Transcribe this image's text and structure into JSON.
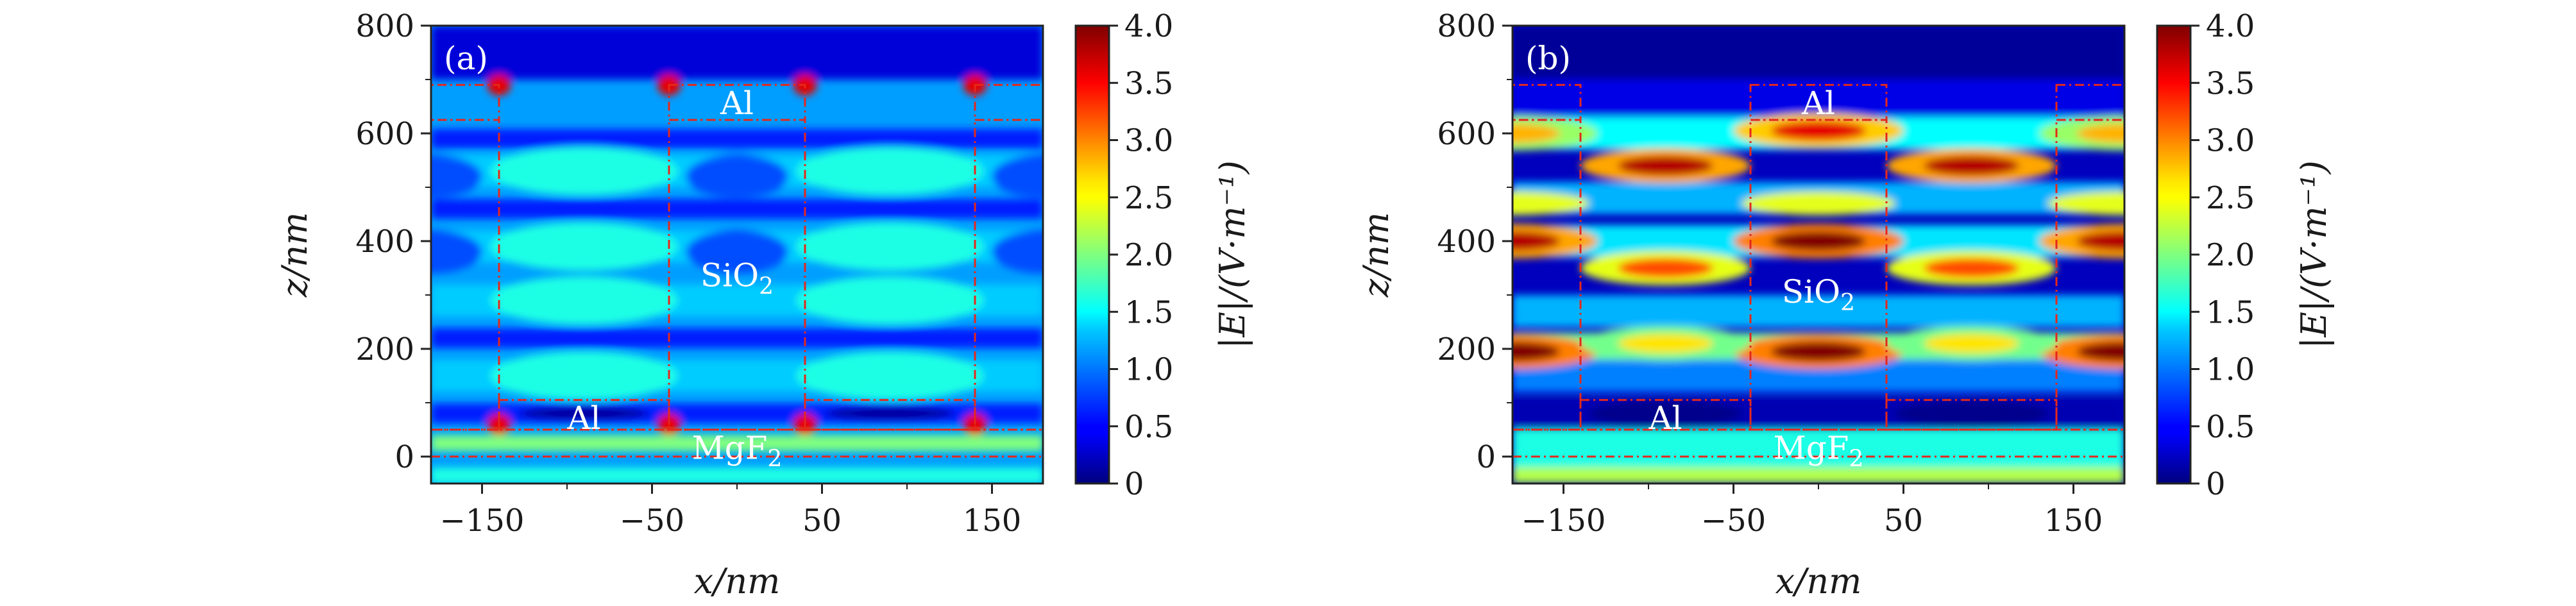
{
  "chart_data": [
    {
      "type": "heatmap",
      "panel_label": "(a)",
      "xlabel": "x/nm",
      "ylabel": "z/nm",
      "xlim": [
        -180,
        180
      ],
      "ylim": [
        -50,
        800
      ],
      "x_ticks": [
        -150,
        -50,
        50,
        150
      ],
      "x_tick_labels": [
        "−150",
        "−50",
        "50",
        "150"
      ],
      "y_ticks": [
        0,
        200,
        400,
        600,
        800
      ],
      "y_tick_labels": [
        "0",
        "200",
        "400",
        "600",
        "800"
      ],
      "region_labels": [
        {
          "text": "Al",
          "x": 0,
          "z": 655
        },
        {
          "text": "SiO",
          "sub": "2",
          "x": 0,
          "z": 335
        },
        {
          "text": "Al",
          "x": -90,
          "z": 70
        },
        {
          "text": "MgF",
          "sub": "2",
          "x": 0,
          "z": 15
        }
      ],
      "colorbar": {
        "label": "|E|/(V·m⁻¹)",
        "range": [
          0,
          4.0
        ],
        "ticks": [
          0,
          0.5,
          1.0,
          1.5,
          2.0,
          2.5,
          3.0,
          3.5,
          4.0
        ],
        "tick_labels": [
          "0",
          "0.5",
          "1.0",
          "1.5",
          "2.0",
          "2.5",
          "3.0",
          "3.5",
          "4.0"
        ]
      }
    },
    {
      "type": "heatmap",
      "panel_label": "(b)",
      "xlabel": "x/nm",
      "ylabel": "z/nm",
      "xlim": [
        -180,
        180
      ],
      "ylim": [
        -50,
        800
      ],
      "x_ticks": [
        -150,
        -50,
        50,
        150
      ],
      "x_tick_labels": [
        "−150",
        "−50",
        "50",
        "150"
      ],
      "y_ticks": [
        0,
        200,
        400,
        600,
        800
      ],
      "y_tick_labels": [
        "0",
        "200",
        "400",
        "600",
        "800"
      ],
      "region_labels": [
        {
          "text": "Al",
          "x": 0,
          "z": 655
        },
        {
          "text": "SiO",
          "sub": "2",
          "x": 0,
          "z": 305
        },
        {
          "text": "Al",
          "x": -90,
          "z": 70
        },
        {
          "text": "MgF",
          "sub": "2",
          "x": 0,
          "z": 15
        }
      ],
      "colorbar": {
        "label": "|E|/(V·m⁻¹)",
        "range": [
          0,
          4.0
        ],
        "ticks": [
          0,
          0.5,
          1.0,
          1.5,
          2.0,
          2.5,
          3.0,
          3.5,
          4.0
        ],
        "tick_labels": [
          "0",
          "0.5",
          "1.0",
          "1.5",
          "2.0",
          "2.5",
          "3.0",
          "3.5",
          "4.0"
        ]
      }
    }
  ],
  "colors": {
    "structure_outline": "#e4281c",
    "jet_low": "#00007f",
    "jet_high": "#7f0000"
  }
}
